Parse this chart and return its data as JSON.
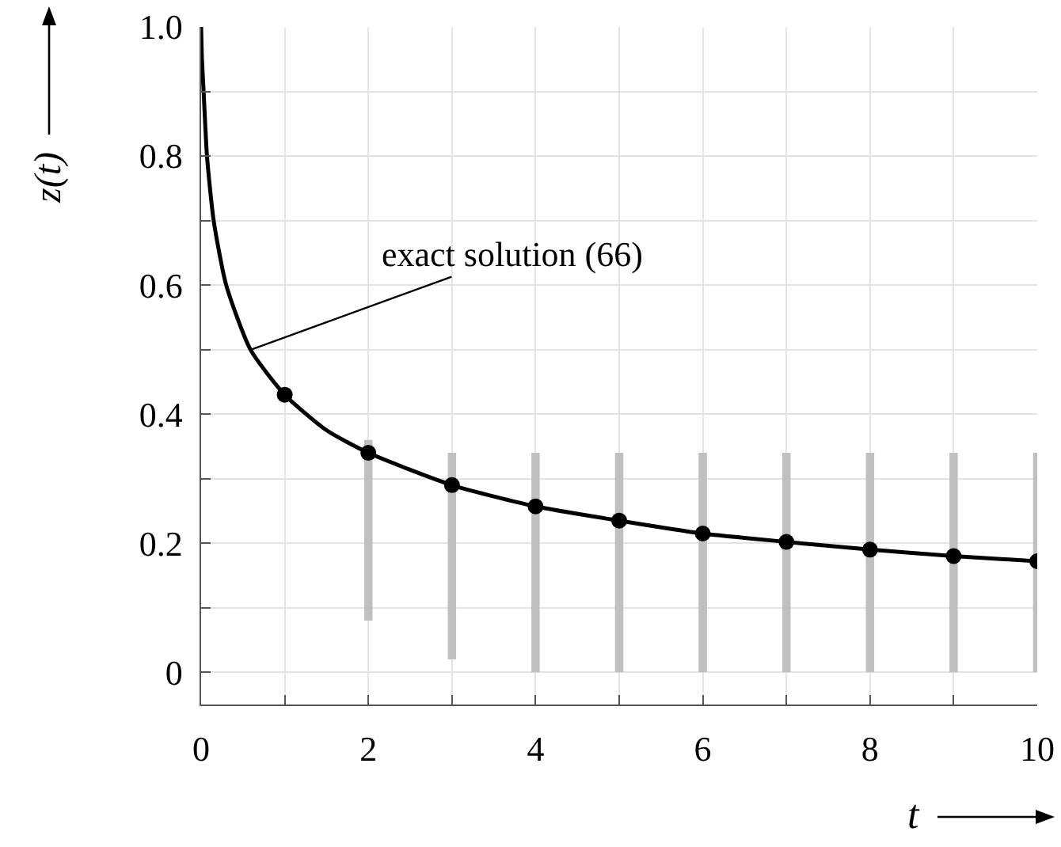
{
  "chart_data": {
    "type": "line",
    "xlabel": "t",
    "ylabel": "z(t)",
    "xlim": [
      0,
      10
    ],
    "ylim": [
      -0.05,
      1
    ],
    "xticks": [
      0,
      {
        "value": 1,
        "label": null
      },
      2,
      {
        "value": 3,
        "label": null
      },
      4,
      {
        "value": 5,
        "label": null
      },
      6,
      {
        "value": 7,
        "label": null
      },
      8,
      {
        "value": 9,
        "label": null
      },
      10
    ],
    "yticks": [
      0,
      {
        "value": 0.1,
        "label": null
      },
      0.2,
      {
        "value": 0.3,
        "label": null
      },
      0.4,
      {
        "value": 0.5,
        "label": null
      },
      0.6,
      {
        "value": 0.7,
        "label": null
      },
      0.8,
      {
        "value": 0.9,
        "label": null
      },
      {
        "value": 1,
        "label": "1.0"
      }
    ],
    "grid": true,
    "annotations": [
      {
        "text": "exact solution (66)",
        "x": 0.6,
        "y": 0.5
      }
    ],
    "series": [
      {
        "type": "bar",
        "color": "#c0c0c0",
        "x": [
          2,
          3,
          4,
          5,
          6,
          7,
          8,
          9,
          10
        ],
        "base": [
          0.08,
          0.02,
          0,
          0,
          0,
          0,
          0,
          0,
          0
        ],
        "values": [
          0.28,
          0.32,
          0.34,
          0.34,
          0.34,
          0.34,
          0.34,
          0.34,
          0.34
        ]
      },
      {
        "color": "#000000",
        "marker": "none",
        "line_style": "solid",
        "x": [
          0,
          0.01,
          0.03,
          0.07,
          0.15,
          0.3,
          0.59,
          1,
          1.5,
          2,
          3,
          4,
          5,
          6,
          7,
          8,
          9,
          10
        ],
        "values": [
          1,
          0.95,
          0.9,
          0.8,
          0.7,
          0.6,
          0.5,
          0.43,
          0.375,
          0.34,
          0.29,
          0.257,
          0.235,
          0.215,
          0.202,
          0.19,
          0.18,
          0.172
        ]
      },
      {
        "type": "scatter",
        "color": "#000000",
        "marker": "circle",
        "x": [
          1,
          2,
          3,
          4,
          5,
          6,
          7,
          8,
          9,
          10
        ],
        "values": [
          0.43,
          0.34,
          0.29,
          0.257,
          0.235,
          0.215,
          0.202,
          0.19,
          0.18,
          0.172
        ]
      }
    ]
  }
}
